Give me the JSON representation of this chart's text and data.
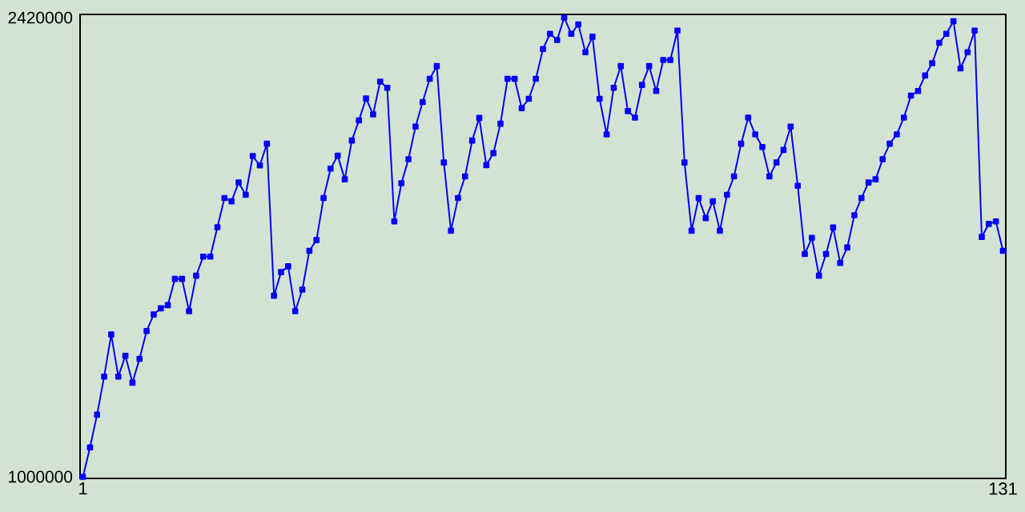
{
  "chart_data": {
    "type": "line",
    "x": [
      1,
      2,
      3,
      4,
      5,
      6,
      7,
      8,
      9,
      10,
      11,
      12,
      13,
      14,
      15,
      16,
      17,
      18,
      19,
      20,
      21,
      22,
      23,
      24,
      25,
      26,
      27,
      28,
      29,
      30,
      31,
      32,
      33,
      34,
      35,
      36,
      37,
      38,
      39,
      40,
      41,
      42,
      43,
      44,
      45,
      46,
      47,
      48,
      49,
      50,
      51,
      52,
      53,
      54,
      55,
      56,
      57,
      58,
      59,
      60,
      61,
      62,
      63,
      64,
      65,
      66,
      67,
      68,
      69,
      70,
      71,
      72,
      73,
      74,
      75,
      76,
      77,
      78,
      79,
      80,
      81,
      82,
      83,
      84,
      85,
      86,
      87,
      88,
      89,
      90,
      91,
      92,
      93,
      94,
      95,
      96,
      97,
      98,
      99,
      100,
      101,
      102,
      103,
      104,
      105,
      106,
      107,
      108,
      109,
      110,
      111,
      112,
      113,
      114,
      115,
      116,
      117,
      118,
      119,
      120,
      121,
      122,
      123,
      124,
      125,
      126,
      127,
      128,
      129,
      130,
      131
    ],
    "series": [
      {
        "color": "#0000ff",
        "values": [
          1000000,
          1091000,
          1192000,
          1310000,
          1440000,
          1310000,
          1374000,
          1291000,
          1365000,
          1451000,
          1502000,
          1521000,
          1531000,
          1612000,
          1612000,
          1512000,
          1622000,
          1681000,
          1681000,
          1772000,
          1862000,
          1852000,
          1910000,
          1872000,
          1992000,
          1963000,
          2030000,
          1560000,
          1633000,
          1651000,
          1512000,
          1579000,
          1699000,
          1732000,
          1862000,
          1953000,
          1993000,
          1920000,
          2040000,
          2102000,
          2170000,
          2121000,
          2222000,
          2203000,
          1790000,
          1908000,
          1982000,
          2083000,
          2159000,
          2231000,
          2270000,
          1972000,
          1761000,
          1862000,
          1929000,
          2040000,
          2110000,
          1964000,
          2001000,
          2092000,
          2231000,
          2231000,
          2140000,
          2169000,
          2231000,
          2323000,
          2370000,
          2351000,
          2420000,
          2370000,
          2399000,
          2313000,
          2361000,
          2169000,
          2059000,
          2203000,
          2270000,
          2131000,
          2111000,
          2212000,
          2270000,
          2193000,
          2289000,
          2289000,
          2380000,
          1972000,
          1761000,
          1862000,
          1800000,
          1852000,
          1761000,
          1872000,
          1929000,
          2030000,
          2111000,
          2059000,
          2020000,
          1929000,
          1972000,
          2011000,
          2083000,
          1900000,
          1689000,
          1739000,
          1622000,
          1689000,
          1771000,
          1661000,
          1709000,
          1809000,
          1862000,
          1910000,
          1920000,
          1982000,
          2030000,
          2059000,
          2111000,
          2179000,
          2193000,
          2241000,
          2279000,
          2342000,
          2370000,
          2409000,
          2263000,
          2313000,
          2380000,
          1742000,
          1782000,
          1790000,
          1699000
        ]
      }
    ],
    "xlim": [
      0.6,
      131.4
    ],
    "ylim": [
      995000,
      2430000
    ],
    "xticks": [
      1,
      131
    ],
    "yticks": [
      1000000,
      2420000
    ],
    "grid": false,
    "marker": "square",
    "line_style": "solid"
  }
}
